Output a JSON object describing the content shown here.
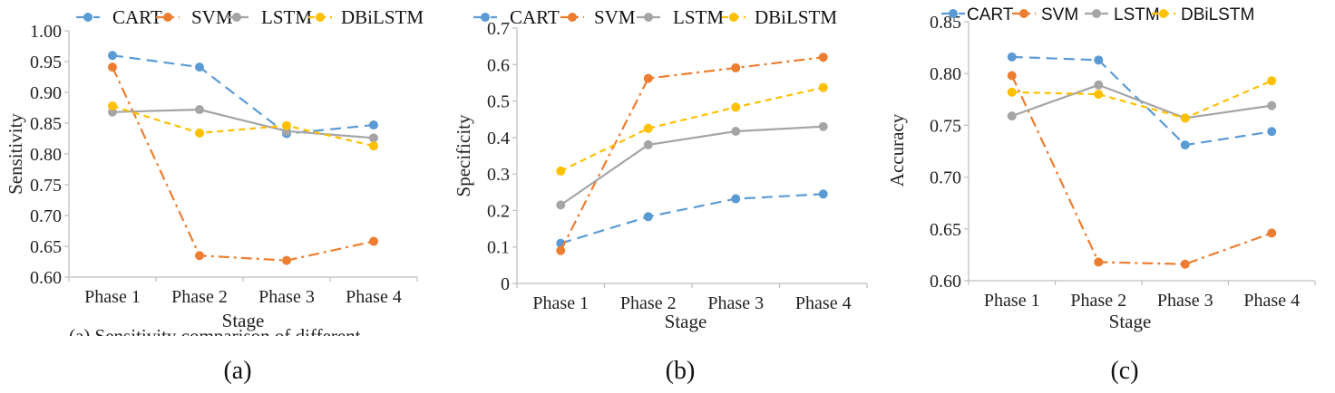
{
  "colors": {
    "CART": "#5b9bd5",
    "SVM": "#ed7d31",
    "LSTM": "#a5a5a5",
    "DBiLSTM": "#ffc000"
  },
  "chart_data": [
    {
      "type": "line",
      "caption": "(a)",
      "ylabel": "Sensitivity",
      "xlabel": "Stage",
      "categories": [
        "Phase 1",
        "Phase 2",
        "Phase 3",
        "Phase 4"
      ],
      "ylim": [
        0.6,
        1.0
      ],
      "yticks": [
        "0.60",
        "0.65",
        "0.70",
        "0.75",
        "0.80",
        "0.85",
        "0.90",
        "0.95",
        "1.00"
      ],
      "grid": false,
      "legend_position": "top",
      "series": [
        {
          "name": "CART",
          "values": [
            0.96,
            0.941,
            0.833,
            0.847
          ]
        },
        {
          "name": "SVM",
          "values": [
            0.941,
            0.635,
            0.627,
            0.658
          ]
        },
        {
          "name": "LSTM",
          "values": [
            0.868,
            0.872,
            0.837,
            0.826
          ]
        },
        {
          "name": "DBiLSTM",
          "values": [
            0.878,
            0.834,
            0.846,
            0.813
          ]
        }
      ],
      "partial_caption": "(a) Sensitivity comparison of different"
    },
    {
      "type": "line",
      "caption": "(b)",
      "ylabel": "Specificity",
      "xlabel": "Stage",
      "categories": [
        "Phase 1",
        "Phase 2",
        "Phase 3",
        "Phase 4"
      ],
      "ylim": [
        0,
        0.7
      ],
      "yticks": [
        "0",
        "0.1",
        "0.2",
        "0.3",
        "0.4",
        "0.5",
        "0.6",
        "0.7"
      ],
      "grid": false,
      "legend_position": "top",
      "series": [
        {
          "name": "CART",
          "values": [
            0.11,
            0.183,
            0.232,
            0.245
          ]
        },
        {
          "name": "SVM",
          "values": [
            0.09,
            0.562,
            0.591,
            0.62
          ]
        },
        {
          "name": "LSTM",
          "values": [
            0.215,
            0.38,
            0.417,
            0.43
          ]
        },
        {
          "name": "DBiLSTM",
          "values": [
            0.308,
            0.425,
            0.483,
            0.537
          ]
        }
      ]
    },
    {
      "type": "line",
      "caption": "(c)",
      "ylabel": "Accuracy",
      "xlabel": "Stage",
      "categories": [
        "Phase 1",
        "Phase 2",
        "Phase 3",
        "Phase 4"
      ],
      "ylim": [
        0.6,
        0.85
      ],
      "yticks": [
        "0.60",
        "0.65",
        "0.70",
        "0.75",
        "0.80",
        "0.85"
      ],
      "grid": false,
      "legend_position": "top",
      "series": [
        {
          "name": "CART",
          "values": [
            0.816,
            0.813,
            0.731,
            0.744
          ]
        },
        {
          "name": "SVM",
          "values": [
            0.798,
            0.618,
            0.616,
            0.646
          ]
        },
        {
          "name": "LSTM",
          "values": [
            0.759,
            0.789,
            0.757,
            0.769
          ]
        },
        {
          "name": "DBiLSTM",
          "values": [
            0.782,
            0.78,
            0.757,
            0.793
          ]
        }
      ]
    }
  ]
}
